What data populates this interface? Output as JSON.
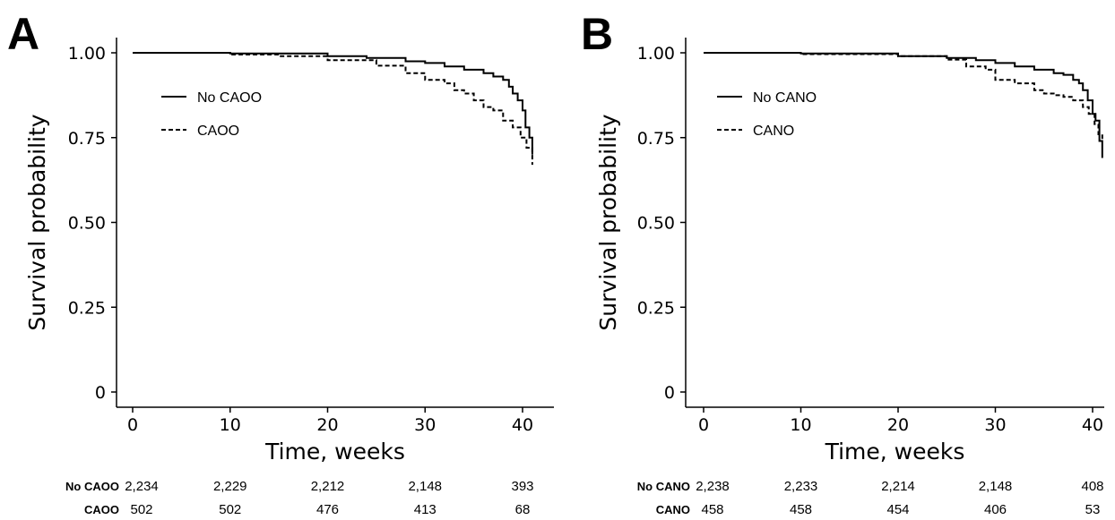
{
  "chart_data": [
    {
      "type": "line",
      "panel": "A",
      "xlabel": "Time, weeks",
      "ylabel": "Survival probability",
      "xlim": [
        0,
        41
      ],
      "ylim": [
        0,
        1
      ],
      "x_ticks": [
        "0",
        "10",
        "20",
        "30",
        "40"
      ],
      "y_ticks": [
        "0",
        "0.25",
        "0.50",
        "0.75",
        "1.00"
      ],
      "legend_position": "upper-left",
      "grid": false,
      "series": [
        {
          "name": "No CAOO",
          "style": "solid",
          "x": [
            0,
            10,
            20,
            24,
            28,
            30,
            32,
            34,
            36,
            37,
            38,
            38.6,
            39,
            39.5,
            40,
            40.3,
            40.7,
            41
          ],
          "y": [
            1.0,
            0.998,
            0.99,
            0.985,
            0.975,
            0.97,
            0.96,
            0.95,
            0.94,
            0.93,
            0.92,
            0.9,
            0.88,
            0.86,
            0.83,
            0.78,
            0.75,
            0.7
          ]
        },
        {
          "name": "CAOO",
          "style": "dashed",
          "x": [
            0,
            10,
            15,
            20,
            25,
            28,
            30,
            32,
            33,
            34,
            35,
            36,
            37,
            38,
            39,
            39.8,
            40.4,
            41
          ],
          "y": [
            1.0,
            0.995,
            0.99,
            0.978,
            0.962,
            0.94,
            0.92,
            0.91,
            0.89,
            0.88,
            0.86,
            0.84,
            0.83,
            0.8,
            0.78,
            0.75,
            0.72,
            0.67
          ]
        }
      ],
      "risk_table": {
        "rows": [
          {
            "label": "No  CAOO",
            "values": [
              "2,234",
              "2,229",
              "2,212",
              "2,148",
              "393"
            ]
          },
          {
            "label": "CAOO",
            "values": [
              "502",
              "502",
              "476",
              "413",
              "68"
            ]
          }
        ],
        "at_times": [
          0,
          10,
          20,
          30,
          40
        ]
      }
    },
    {
      "type": "line",
      "panel": "B",
      "xlabel": "Time, weeks",
      "ylabel": "Survival probability",
      "xlim": [
        0,
        41
      ],
      "ylim": [
        0,
        1
      ],
      "x_ticks": [
        "0",
        "10",
        "20",
        "30",
        "40"
      ],
      "y_ticks": [
        "0",
        "0.25",
        "0.50",
        "0.75",
        "1.00"
      ],
      "legend_position": "upper-left",
      "grid": false,
      "series": [
        {
          "name": "No CANO",
          "style": "solid",
          "x": [
            0,
            10,
            20,
            25,
            28,
            30,
            32,
            34,
            36,
            37,
            38,
            38.6,
            39,
            39.5,
            40,
            40.3,
            40.7,
            41
          ],
          "y": [
            1.0,
            0.998,
            0.99,
            0.985,
            0.978,
            0.97,
            0.96,
            0.95,
            0.94,
            0.935,
            0.92,
            0.91,
            0.89,
            0.86,
            0.82,
            0.8,
            0.74,
            0.69
          ]
        },
        {
          "name": "CANO",
          "style": "dashed",
          "x": [
            0,
            10,
            20,
            25,
            27,
            29,
            30,
            32,
            34,
            35,
            36,
            37,
            38,
            39,
            39.6,
            40.2,
            40.6,
            41
          ],
          "y": [
            1.0,
            0.996,
            0.99,
            0.98,
            0.96,
            0.95,
            0.92,
            0.91,
            0.89,
            0.88,
            0.875,
            0.87,
            0.86,
            0.84,
            0.82,
            0.79,
            0.76,
            0.74
          ]
        }
      ],
      "risk_table": {
        "rows": [
          {
            "label": "No CANO",
            "values": [
              "2,238",
              "2,233",
              "2,214",
              "2,148",
              "408"
            ]
          },
          {
            "label": "CANO",
            "values": [
              "458",
              "458",
              "454",
              "406",
              "53"
            ]
          }
        ],
        "at_times": [
          0,
          10,
          20,
          30,
          40
        ]
      }
    }
  ]
}
